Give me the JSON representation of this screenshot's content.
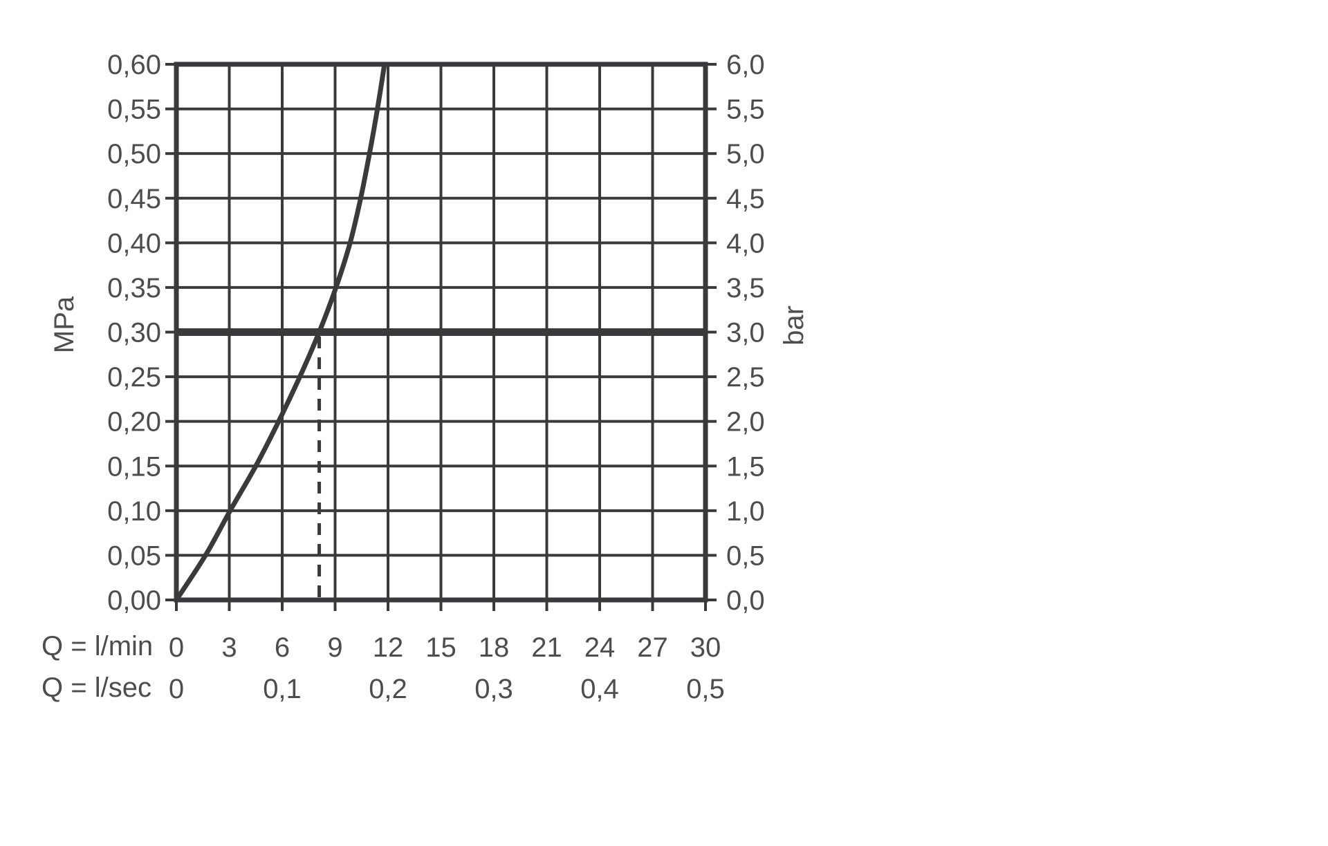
{
  "chart_data": {
    "type": "line",
    "title": "",
    "x_axis": {
      "label": "Q = l/min",
      "label_secondary": "Q = l/sec",
      "range": [
        0,
        30
      ],
      "tick_values": [
        0,
        3,
        6,
        9,
        12,
        15,
        18,
        21,
        24,
        27,
        30
      ],
      "tick_labels": [
        "0",
        "3",
        "6",
        "9",
        "12",
        "15",
        "18",
        "21",
        "24",
        "27",
        "30"
      ],
      "secondary_ticks": [
        {
          "label": "0",
          "at_lmin": 0
        },
        {
          "label": "0,1",
          "at_lmin": 6
        },
        {
          "label": "0,2",
          "at_lmin": 12
        },
        {
          "label": "0,3",
          "at_lmin": 18
        },
        {
          "label": "0,4",
          "at_lmin": 24
        },
        {
          "label": "0,5",
          "at_lmin": 30
        }
      ]
    },
    "y_axis_left": {
      "unit": "MPa",
      "range": [
        0,
        0.6
      ],
      "tick_values": [
        0,
        0.05,
        0.1,
        0.15,
        0.2,
        0.25,
        0.3,
        0.35,
        0.4,
        0.45,
        0.5,
        0.55,
        0.6
      ],
      "tick_labels": [
        "0,00",
        "0,05",
        "0,10",
        "0,15",
        "0,20",
        "0,25",
        "0,30",
        "0,35",
        "0,40",
        "0,45",
        "0,50",
        "0,55",
        "0,60"
      ]
    },
    "y_axis_right": {
      "unit": "bar",
      "range": [
        0,
        6
      ],
      "tick_values": [
        0,
        0.5,
        1.0,
        1.5,
        2.0,
        2.5,
        3.0,
        3.5,
        4.0,
        4.5,
        5.0,
        5.5,
        6.0
      ],
      "tick_labels": [
        "0,0",
        "0,5",
        "1,0",
        "1,5",
        "2,0",
        "2,5",
        "3,0",
        "3,5",
        "4,0",
        "4,5",
        "5,0",
        "5,5",
        "6,0"
      ]
    },
    "grid": true,
    "legend": false,
    "series": [
      {
        "name": "flow-rate-curve",
        "points_lmin_mpa": [
          [
            0,
            0.0
          ],
          [
            1.65,
            0.05
          ],
          [
            3.05,
            0.1
          ],
          [
            4.5,
            0.15
          ],
          [
            5.8,
            0.2
          ],
          [
            7.0,
            0.25
          ],
          [
            8.1,
            0.3
          ],
          [
            9.05,
            0.35
          ],
          [
            9.85,
            0.4
          ],
          [
            10.45,
            0.45
          ],
          [
            10.95,
            0.5
          ],
          [
            11.4,
            0.55
          ],
          [
            11.8,
            0.6
          ]
        ]
      }
    ],
    "reference_line": {
      "mpa": 0.3,
      "bar": 3.0
    },
    "dashed_marker": {
      "lmin": 8.1,
      "from_mpa": 0.3,
      "to_mpa": 0.0
    },
    "operating_point": {
      "lmin": 8.1,
      "mpa": 0.3,
      "bar": 3.0
    },
    "colors": {
      "line": "#3a3a3c",
      "text": "#4d4d4f",
      "background": "#ffffff"
    }
  }
}
